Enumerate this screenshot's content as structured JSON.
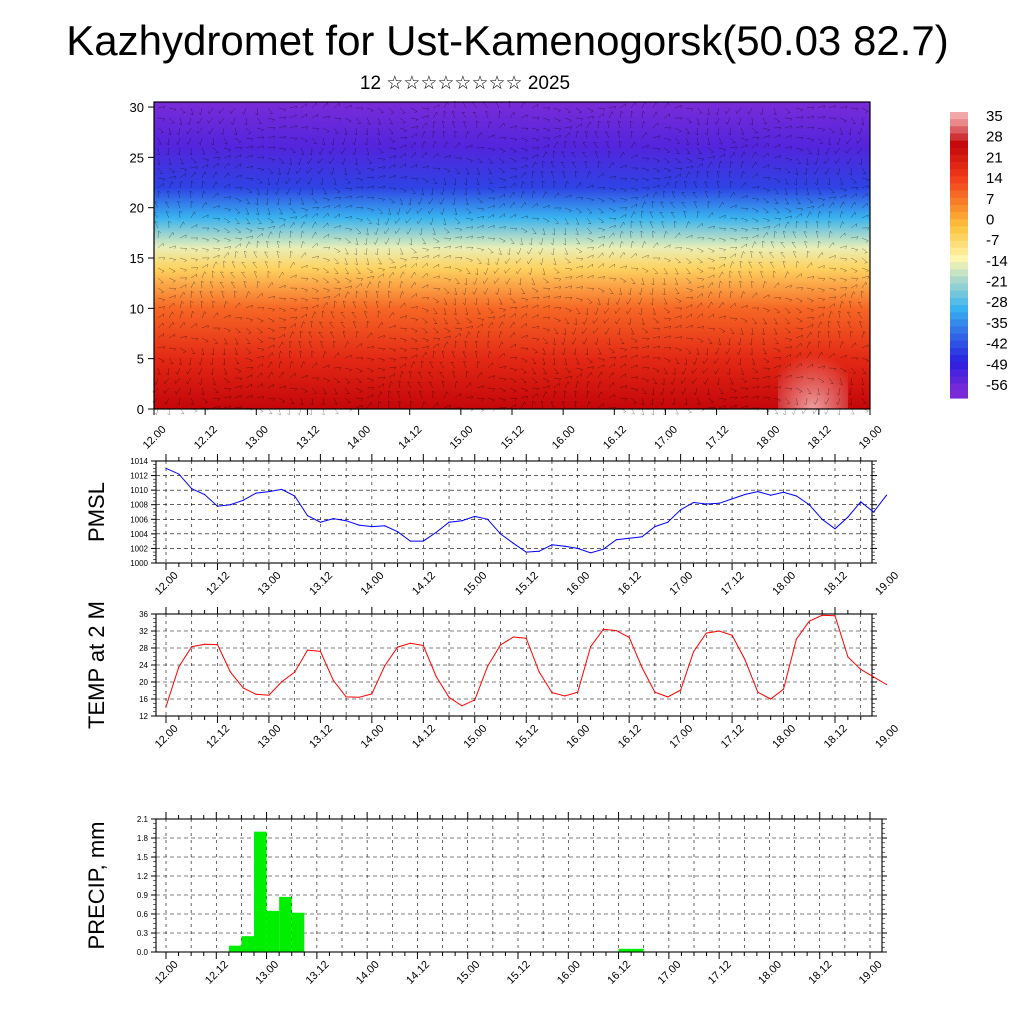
{
  "title": "Kazhydromet for Ust-Kamenogorsk(50.03 82.7)",
  "subtitle": "12 ☆☆☆☆☆☆☆☆ 2025",
  "chart_data": [
    {
      "type": "heatmap",
      "name": "cross-section",
      "x_ticks": [
        "12.00",
        "12.12",
        "13.00",
        "13.12",
        "14.00",
        "14.12",
        "15.00",
        "15.12",
        "16.00",
        "16.12",
        "17.00",
        "17.12",
        "18.00",
        "18.12",
        "19.00"
      ],
      "y_ticks": [
        "0",
        "5",
        "10",
        "15",
        "20",
        "25",
        "30"
      ],
      "ylim": [
        0,
        30.5
      ],
      "colorbar_labels": [
        "35",
        "28",
        "21",
        "14",
        "7",
        "0",
        "-7",
        "-14",
        "-21",
        "-28",
        "-35",
        "-42",
        "-49",
        "-56"
      ],
      "colorbar_range": [
        -63,
        42
      ],
      "colors": {
        "very_cold": "#7a2bd8",
        "cold": "#2a1ee0",
        "cool": "#39b3ef",
        "neutral": "#fff6b0",
        "mild": "#fdc23a",
        "warm": "#f23a1a",
        "hot": "#c4060a",
        "max": "#f2a8a8"
      },
      "layers": [
        {
          "altitude": 0,
          "value": 30
        },
        {
          "altitude": 5,
          "value": 22
        },
        {
          "altitude": 10,
          "value": 12
        },
        {
          "altitude": 14,
          "value": -4
        },
        {
          "altitude": 16,
          "value": -14
        },
        {
          "altitude": 19,
          "value": -30
        },
        {
          "altitude": 22,
          "value": -45
        },
        {
          "altitude": 26,
          "value": -55
        },
        {
          "altitude": 30.5,
          "value": -60
        }
      ]
    },
    {
      "type": "line",
      "name": "PMSL",
      "ylabel": "PMSL",
      "ylim": [
        1000,
        1014
      ],
      "y_ticks": [
        "1014",
        "1012",
        "1010",
        "1008",
        "1006",
        "1004",
        "1002",
        "1000"
      ],
      "x_ticks": [
        "12.00",
        "12.12",
        "13.00",
        "13.12",
        "14.00",
        "14.12",
        "15.00",
        "15.12",
        "16.00",
        "16.12",
        "17.00",
        "17.12",
        "18.00",
        "18.12",
        "19.00"
      ],
      "x_hours": [
        0,
        3,
        6,
        9,
        12,
        15,
        18,
        21,
        24,
        27,
        30,
        33,
        36,
        39,
        42,
        45,
        48,
        51,
        54,
        57,
        60,
        63,
        66,
        69,
        72,
        75,
        78,
        81,
        84,
        87,
        90,
        93,
        96,
        99,
        102,
        105,
        108,
        111,
        114,
        117,
        120,
        123,
        126,
        129,
        132,
        135,
        138,
        141,
        144,
        147,
        150,
        153,
        156,
        159,
        162,
        165,
        168
      ],
      "values": [
        1013.0,
        1012.2,
        1010.2,
        1009.4,
        1007.8,
        1008.0,
        1008.6,
        1009.6,
        1009.8,
        1010.1,
        1009.2,
        1006.5,
        1005.6,
        1006.1,
        1005.8,
        1005.2,
        1005.0,
        1005.1,
        1004.3,
        1003.0,
        1003.0,
        1004.2,
        1005.6,
        1005.8,
        1006.4,
        1006.0,
        1004.0,
        1002.7,
        1001.5,
        1001.6,
        1002.5,
        1002.3,
        1002.0,
        1001.4,
        1001.9,
        1003.2,
        1003.4,
        1003.6,
        1005.0,
        1005.6,
        1007.3,
        1008.3,
        1008.1,
        1008.2,
        1008.8,
        1009.4,
        1009.8,
        1009.3,
        1009.7,
        1009.2,
        1008.0,
        1006.0,
        1004.7,
        1006.3,
        1008.4,
        1007.0,
        1009.3
      ],
      "line_color": "#0000ff"
    },
    {
      "type": "line",
      "name": "TEMP at 2 M",
      "ylabel": "TEMP at 2 M",
      "ylim": [
        12,
        36
      ],
      "y_ticks": [
        "36",
        "32",
        "28",
        "24",
        "20",
        "16",
        "12"
      ],
      "x_ticks": [
        "12.00",
        "12.12",
        "13.00",
        "13.12",
        "14.00",
        "14.12",
        "15.00",
        "15.12",
        "16.00",
        "16.12",
        "17.00",
        "17.12",
        "18.00",
        "18.12",
        "19.00"
      ],
      "x_hours": [
        0,
        3,
        6,
        9,
        12,
        15,
        18,
        21,
        24,
        27,
        30,
        33,
        36,
        39,
        42,
        45,
        48,
        51,
        54,
        57,
        60,
        63,
        66,
        69,
        72,
        75,
        78,
        81,
        84,
        87,
        90,
        93,
        96,
        99,
        102,
        105,
        108,
        111,
        114,
        117,
        120,
        123,
        126,
        129,
        132,
        135,
        138,
        141,
        144,
        147,
        150,
        153,
        156,
        159,
        162,
        165,
        168
      ],
      "values": [
        14.2,
        23.6,
        28.3,
        28.9,
        28.8,
        22.4,
        18.6,
        17.1,
        16.9,
        20.1,
        22.3,
        27.5,
        27.2,
        20.4,
        16.5,
        16.4,
        17.2,
        23.8,
        28.2,
        29.1,
        28.6,
        21.3,
        16.4,
        14.4,
        15.8,
        23.7,
        28.7,
        30.6,
        30.3,
        22.4,
        17.5,
        16.7,
        17.6,
        28.3,
        32.4,
        32.1,
        30.5,
        23.4,
        17.6,
        16.5,
        18.1,
        27.1,
        31.5,
        32.0,
        31.0,
        25.3,
        17.6,
        16.0,
        18.3,
        30.1,
        34.3,
        35.7,
        35.6,
        25.9,
        23.0,
        21.2,
        19.4
      ],
      "line_color": "#ff0000"
    },
    {
      "type": "bar",
      "name": "PRECIP, mm",
      "ylabel": "PRECIP, mm",
      "ylim": [
        0,
        2.1
      ],
      "y_ticks": [
        "2.1",
        "1.8",
        "1.5",
        "1.2",
        "0.9",
        "0.6",
        "0.3",
        "0.0"
      ],
      "x_ticks": [
        "12.00",
        "12.12",
        "13.00",
        "13.12",
        "14.00",
        "14.12",
        "15.00",
        "15.12",
        "16.00",
        "16.12",
        "17.00",
        "17.12",
        "18.00",
        "18.12",
        "19.00"
      ],
      "x_hours": [
        15,
        18,
        21,
        24,
        27,
        30,
        108,
        111
      ],
      "values": [
        0.1,
        0.25,
        1.9,
        0.65,
        0.87,
        0.62,
        0.05,
        0.05
      ],
      "bar_color": "#00ee00"
    }
  ]
}
